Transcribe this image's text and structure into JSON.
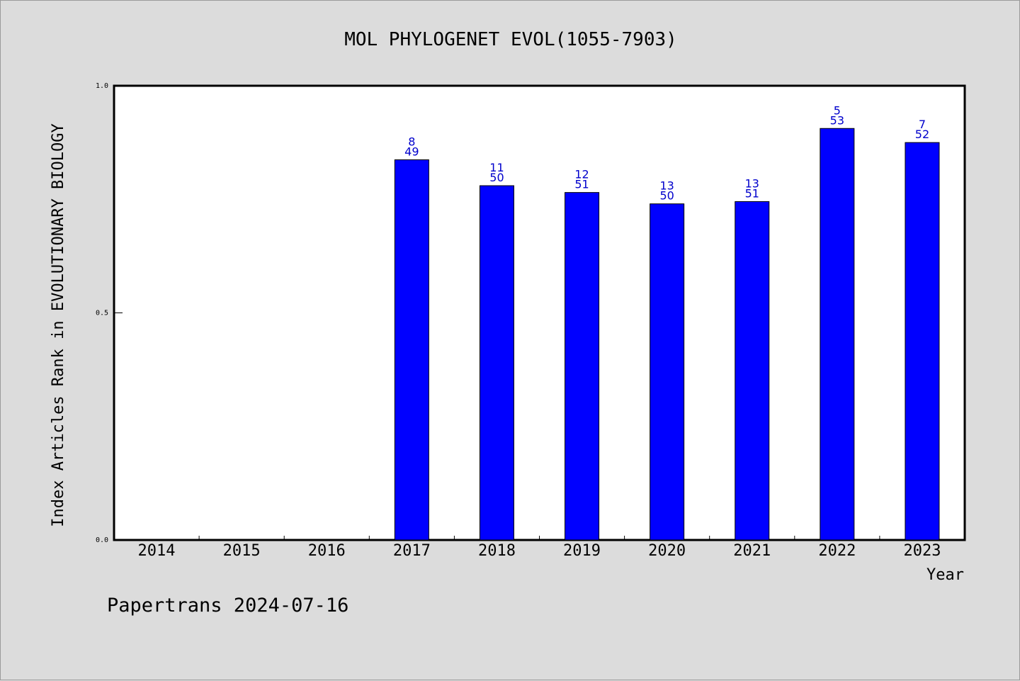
{
  "chart_data": {
    "type": "bar",
    "title": "MOL PHYLOGENET EVOL(1055-7903)",
    "xlabel": "Year",
    "ylabel": "Index Articles Rank in EVOLUTIONARY BIOLOGY",
    "ylim": [
      0,
      1
    ],
    "yticks": [
      "0.0",
      "0.5",
      "1.0"
    ],
    "grid": false,
    "categories": [
      "2014",
      "2015",
      "2016",
      "2017",
      "2018",
      "2019",
      "2020",
      "2021",
      "2022",
      "2023"
    ],
    "values": [
      null,
      null,
      null,
      0.837,
      0.78,
      0.765,
      0.74,
      0.745,
      0.906,
      0.875
    ],
    "ranks": [
      null,
      null,
      null,
      "8",
      "11",
      "12",
      "13",
      "13",
      "5",
      "7"
    ],
    "totals": [
      null,
      null,
      null,
      "49",
      "50",
      "51",
      "50",
      "51",
      "53",
      "52"
    ],
    "bar_color": "#0000ff",
    "label_color": "#0000cc"
  },
  "footer": "Papertrans 2024-07-16"
}
